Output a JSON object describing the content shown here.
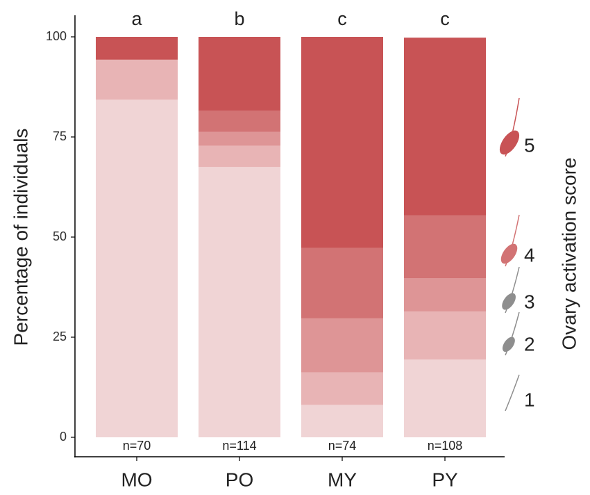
{
  "chart_data": {
    "type": "stacked_bar",
    "y_label": "Percentage of individuals",
    "legend_title": "Ovary activation score",
    "categories": [
      "MO",
      "PO",
      "MY",
      "PY"
    ],
    "group_letters": [
      "a",
      "b",
      "c",
      "c"
    ],
    "sample_sizes": [
      "n=70",
      "n=114",
      "n=74",
      "n=108"
    ],
    "series": [
      {
        "name": "1",
        "color": "#f0d4d5",
        "values": [
          84.3,
          67.5,
          8.1,
          19.4
        ]
      },
      {
        "name": "2",
        "color": "#e8b4b5",
        "values": [
          10.0,
          5.3,
          8.1,
          12.0
        ]
      },
      {
        "name": "3",
        "color": "#de9596",
        "values": [
          0,
          3.5,
          13.5,
          8.3
        ]
      },
      {
        "name": "4",
        "color": "#d27374",
        "values": [
          0,
          5.3,
          17.6,
          15.7
        ]
      },
      {
        "name": "5",
        "color": "#c85355",
        "values": [
          5.7,
          18.4,
          52.7,
          44.4
        ]
      }
    ],
    "ylim": [
      0,
      100
    ],
    "yticks": [
      0,
      25,
      50,
      75,
      100
    ],
    "grid": false
  }
}
